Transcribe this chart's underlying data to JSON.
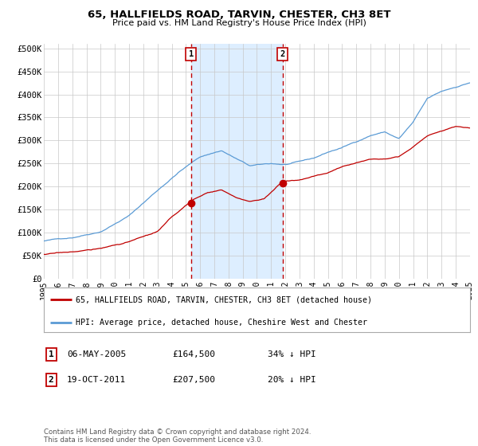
{
  "title": "65, HALLFIELDS ROAD, TARVIN, CHESTER, CH3 8ET",
  "subtitle": "Price paid vs. HM Land Registry's House Price Index (HPI)",
  "ylim": [
    0,
    510000
  ],
  "yticks": [
    0,
    50000,
    100000,
    150000,
    200000,
    250000,
    300000,
    350000,
    400000,
    450000,
    500000
  ],
  "ytick_labels": [
    "£0",
    "£50K",
    "£100K",
    "£150K",
    "£200K",
    "£250K",
    "£300K",
    "£350K",
    "£400K",
    "£450K",
    "£500K"
  ],
  "x_start_year": 1995,
  "x_end_year": 2025,
  "sale1_date": "06-MAY-2005",
  "sale1_price": 164500,
  "sale1_label": "1",
  "sale1_hpi_diff": "34% ↓ HPI",
  "sale1_x": 2005.35,
  "sale2_date": "19-OCT-2011",
  "sale2_price": 207500,
  "sale2_label": "2",
  "sale2_hpi_diff": "20% ↓ HPI",
  "sale2_x": 2011.8,
  "hpi_color": "#5b9bd5",
  "price_color": "#c00000",
  "background_color": "#ffffff",
  "grid_color": "#c8c8c8",
  "shade_color": "#ddeeff",
  "legend_label1": "65, HALLFIELDS ROAD, TARVIN, CHESTER, CH3 8ET (detached house)",
  "legend_label2": "HPI: Average price, detached house, Cheshire West and Chester",
  "footer": "Contains HM Land Registry data © Crown copyright and database right 2024.\nThis data is licensed under the Open Government Licence v3.0."
}
